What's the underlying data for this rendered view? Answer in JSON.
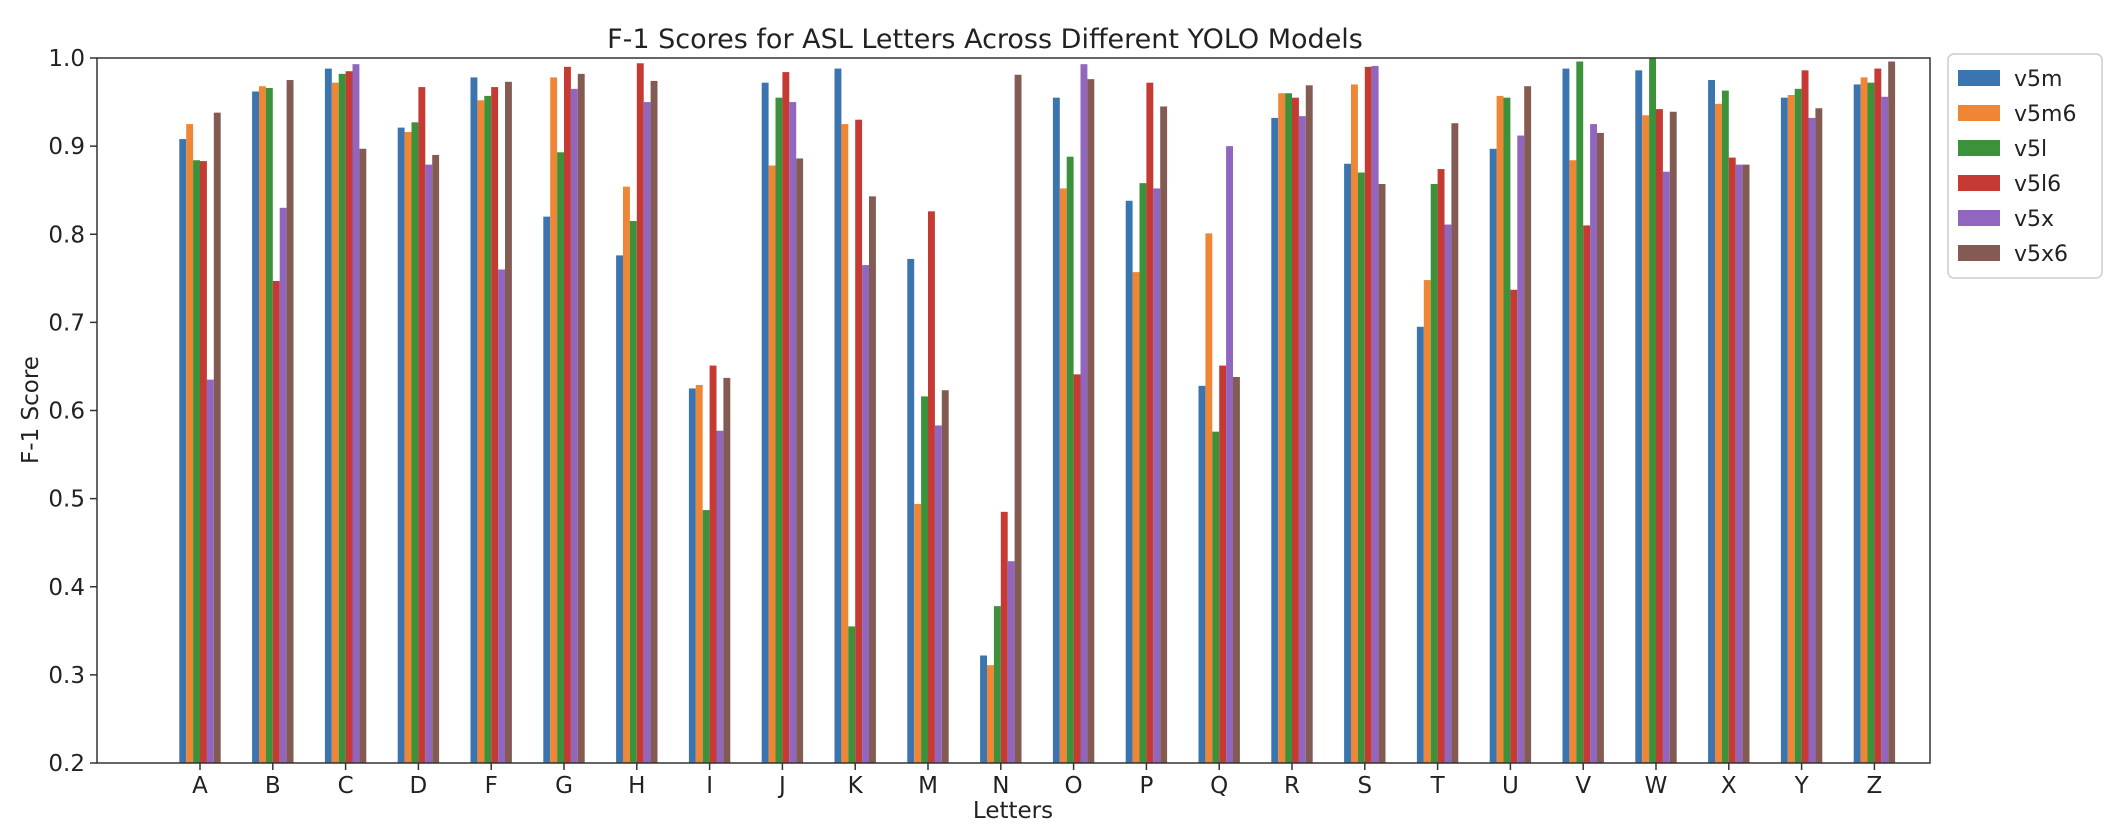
{
  "chart_data": {
    "type": "bar",
    "title": "F-1 Scores for ASL Letters Across Different YOLO Models",
    "xlabel": "Letters",
    "ylabel": "F-1 Score",
    "ylim": [
      0.2,
      1.0
    ],
    "yticks": [
      "0.2",
      "0.3",
      "0.4",
      "0.5",
      "0.6",
      "0.7",
      "0.8",
      "0.9",
      "1.0"
    ],
    "grid": false,
    "legend_position": "outside-top-right",
    "categories": [
      "A",
      "B",
      "C",
      "D",
      "F",
      "G",
      "H",
      "I",
      "J",
      "K",
      "M",
      "N",
      "O",
      "P",
      "Q",
      "R",
      "S",
      "T",
      "U",
      "V",
      "W",
      "X",
      "Y",
      "Z"
    ],
    "series": [
      {
        "name": "v5m",
        "color": "#3a75b0",
        "values": [
          0.908,
          0.962,
          0.988,
          0.921,
          0.978,
          0.82,
          0.776,
          0.625,
          0.972,
          0.988,
          0.772,
          0.322,
          0.955,
          0.838,
          0.628,
          0.932,
          0.88,
          0.695,
          0.897,
          0.988,
          0.986,
          0.975,
          0.955,
          0.97
        ]
      },
      {
        "name": "v5m6",
        "color": "#ef8636",
        "values": [
          0.925,
          0.968,
          0.972,
          0.916,
          0.952,
          0.978,
          0.854,
          0.629,
          0.878,
          0.925,
          0.494,
          0.311,
          0.852,
          0.757,
          0.801,
          0.96,
          0.97,
          0.748,
          0.957,
          0.884,
          0.935,
          0.948,
          0.958,
          0.978
        ]
      },
      {
        "name": "v5l",
        "color": "#3b923b",
        "values": [
          0.884,
          0.966,
          0.982,
          0.927,
          0.957,
          0.893,
          0.815,
          0.487,
          0.955,
          0.355,
          0.616,
          0.378,
          0.888,
          0.858,
          0.576,
          0.96,
          0.87,
          0.857,
          0.955,
          0.996,
          1.0,
          0.963,
          0.965,
          0.972
        ]
      },
      {
        "name": "v5l6",
        "color": "#c53a32",
        "values": [
          0.883,
          0.747,
          0.985,
          0.967,
          0.967,
          0.99,
          0.994,
          0.651,
          0.984,
          0.93,
          0.826,
          0.485,
          0.641,
          0.972,
          0.651,
          0.955,
          0.99,
          0.874,
          0.737,
          0.81,
          0.942,
          0.887,
          0.986,
          0.988
        ]
      },
      {
        "name": "v5x",
        "color": "#9066bf",
        "values": [
          0.635,
          0.83,
          0.993,
          0.879,
          0.76,
          0.965,
          0.95,
          0.577,
          0.95,
          0.765,
          0.583,
          0.429,
          0.993,
          0.852,
          0.9,
          0.934,
          0.991,
          0.811,
          0.912,
          0.925,
          0.871,
          0.879,
          0.932,
          0.956
        ]
      },
      {
        "name": "v5x6",
        "color": "#845b53",
        "values": [
          0.938,
          0.975,
          0.897,
          0.89,
          0.973,
          0.982,
          0.974,
          0.637,
          0.886,
          0.843,
          0.623,
          0.981,
          0.976,
          0.945,
          0.638,
          0.969,
          0.857,
          0.926,
          0.968,
          0.915,
          0.939,
          0.879,
          0.943,
          0.996
        ]
      }
    ]
  }
}
